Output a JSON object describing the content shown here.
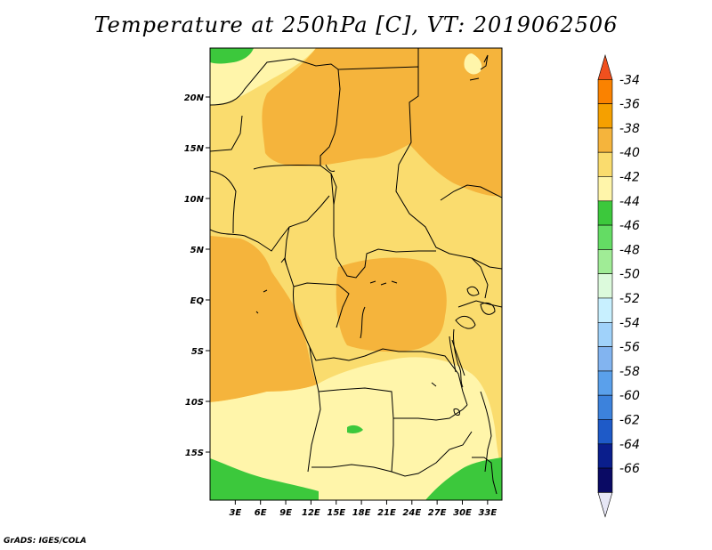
{
  "title": "Temperature at 250hPa [C], VT: 2019062506",
  "footer": "GrADS: IGES/COLA",
  "map": {
    "lat_ticks": [
      {
        "label": "20N",
        "value": 20
      },
      {
        "label": "15N",
        "value": 15
      },
      {
        "label": "10N",
        "value": 10
      },
      {
        "label": "5N",
        "value": 5
      },
      {
        "label": "EQ",
        "value": 0
      },
      {
        "label": "5S",
        "value": -5
      },
      {
        "label": "10S",
        "value": -10
      },
      {
        "label": "15S",
        "value": -15
      }
    ],
    "lon_ticks": [
      {
        "label": "3E",
        "value": 3
      },
      {
        "label": "6E",
        "value": 6
      },
      {
        "label": "9E",
        "value": 9
      },
      {
        "label": "12E",
        "value": 12
      },
      {
        "label": "15E",
        "value": 15
      },
      {
        "label": "18E",
        "value": 18
      },
      {
        "label": "21E",
        "value": 21
      },
      {
        "label": "24E",
        "value": 24
      },
      {
        "label": "27E",
        "value": 27
      },
      {
        "label": "30E",
        "value": 30
      },
      {
        "label": "33E",
        "value": 33
      }
    ]
  },
  "colorbar": {
    "levels": [
      "-34",
      "-36",
      "-38",
      "-40",
      "-42",
      "-44",
      "-46",
      "-48",
      "-50",
      "-52",
      "-54",
      "-56",
      "-58",
      "-60",
      "-62",
      "-64",
      "-66"
    ],
    "colors": [
      "#f0501e",
      "#fa8200",
      "#f5a000",
      "#f5b43c",
      "#fadc6e",
      "#fff5aa",
      "#3cc83c",
      "#64dc64",
      "#a0ec96",
      "#dcfadc",
      "#c8f0ff",
      "#a0d2fa",
      "#82b4f0",
      "#5aa0eb",
      "#3c82dc",
      "#1e5ac8",
      "#0a1e8c",
      "#0a0a64",
      "#e6e6f5"
    ]
  },
  "field_colors": {
    "c38": "#f5b43c",
    "c40": "#fadc6e",
    "c42": "#fff5aa",
    "c44": "#3cc83c",
    "borders": "#000000"
  }
}
